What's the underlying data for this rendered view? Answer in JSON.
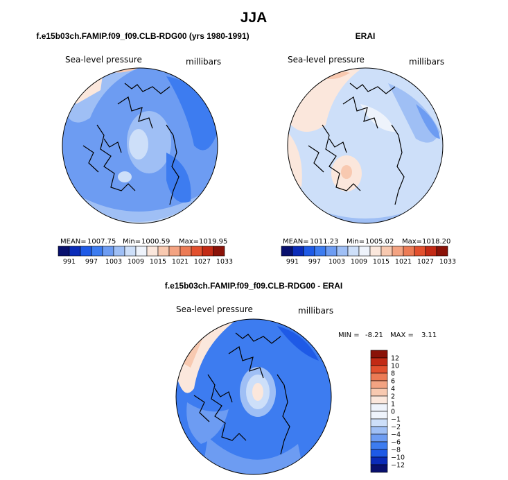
{
  "page": {
    "title": "JJA"
  },
  "chart_data": [
    {
      "type": "heatmap",
      "projection": "polar-stereographic",
      "title": "f.e15b03ch.FAMIP.f09_f09.CLB-RDG00 (yrs 1980-1991)",
      "field_label": "Sea-level pressure",
      "units": "millibars",
      "stats": {
        "mean_label": "MEAN=",
        "mean": "1007.75",
        "min_label": "Min=",
        "min": "1000.59",
        "max_label": "Max=",
        "max": "1019.95"
      },
      "colorbar": {
        "orientation": "horizontal",
        "levels": [
          "991",
          "997",
          "1003",
          "1009",
          "1015",
          "1021",
          "1027",
          "1033"
        ],
        "colors": [
          "#08106e",
          "#0a2bb8",
          "#1e5ae6",
          "#3d7cf0",
          "#6d9cf2",
          "#9fbff5",
          "#cddff9",
          "#eef3fb",
          "#fbe7dc",
          "#f8c9b0",
          "#f3a382",
          "#ec7b55",
          "#e2502e",
          "#c22a15",
          "#8a1208"
        ]
      }
    },
    {
      "type": "heatmap",
      "projection": "polar-stereographic",
      "title": "ERAI",
      "field_label": "Sea-level pressure",
      "units": "millibars",
      "stats": {
        "mean_label": "MEAN=",
        "mean": "1011.23",
        "min_label": "Min=",
        "min": "1005.02",
        "max_label": "Max=",
        "max": "1018.20"
      },
      "colorbar": {
        "orientation": "horizontal",
        "levels": [
          "991",
          "997",
          "1003",
          "1009",
          "1015",
          "1021",
          "1027",
          "1033"
        ],
        "colors": [
          "#08106e",
          "#0a2bb8",
          "#1e5ae6",
          "#3d7cf0",
          "#6d9cf2",
          "#9fbff5",
          "#cddff9",
          "#eef3fb",
          "#fbe7dc",
          "#f8c9b0",
          "#f3a382",
          "#ec7b55",
          "#e2502e",
          "#c22a15",
          "#8a1208"
        ]
      }
    },
    {
      "type": "heatmap",
      "projection": "polar-stereographic",
      "title": "f.e15b03ch.FAMIP.f09_f09.CLB-RDG00 - ERAI",
      "field_label": "Sea-level pressure",
      "units": "millibars",
      "stats": {
        "min_label": "MIN =",
        "min": "-8.21",
        "max_label": "MAX =",
        "max": "3.11"
      },
      "colorbar": {
        "orientation": "vertical",
        "levels": [
          "12",
          "10",
          "8",
          "6",
          "4",
          "2",
          "1",
          "0",
          "−1",
          "−2",
          "−4",
          "−6",
          "−8",
          "−10",
          "−12"
        ],
        "colors": [
          "#8a1208",
          "#c22a15",
          "#e2502e",
          "#ec7b55",
          "#f3a382",
          "#f8c9b0",
          "#fbe7dc",
          "#eef3fb",
          "#eef3fb",
          "#cddff9",
          "#9fbff5",
          "#6d9cf2",
          "#3d7cf0",
          "#1e5ae6",
          "#0a2bb8",
          "#08106e"
        ]
      }
    }
  ]
}
